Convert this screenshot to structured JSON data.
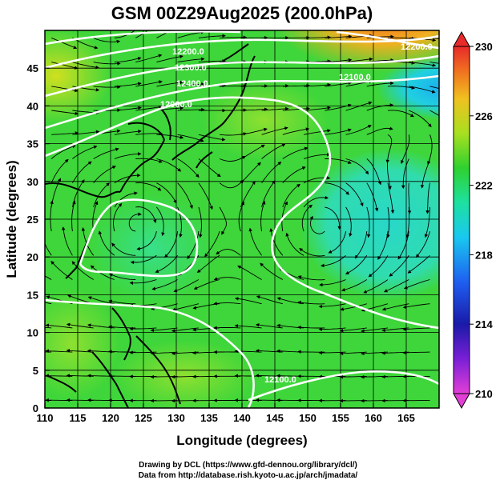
{
  "title": "GSM 00Z29Aug2025 (200.0hPa)",
  "x_axis": {
    "label": "Longitude (degrees)",
    "ticks": [
      "110",
      "115",
      "120",
      "125",
      "130",
      "135",
      "140",
      "145",
      "150",
      "155",
      "160",
      "165"
    ]
  },
  "y_axis": {
    "label": "Latitude (degrees)",
    "ticks": [
      "0",
      "5",
      "10",
      "15",
      "20",
      "25",
      "30",
      "35",
      "40",
      "45"
    ]
  },
  "colorbar": {
    "ticks": [
      "230",
      "226",
      "222",
      "218",
      "214",
      "210"
    ]
  },
  "contour_labels": [
    "12100.0",
    "12200.0",
    "12300.0",
    "12400.0",
    "12000.0",
    "12100.0",
    "12200.0"
  ],
  "credits": {
    "line1": "Drawing by DCL (https://www.gfd-dennou.org/library/dcl/)",
    "line2": "Data from http://database.rish.kyoto-u.ac.jp/arch/jmadata/"
  },
  "chart_data": {
    "type": "heatmap",
    "title": "GSM 00Z29Aug2025 (200.0hPa)",
    "xlabel": "Longitude (degrees)",
    "ylabel": "Latitude (degrees)",
    "xlim": [
      110,
      170
    ],
    "ylim": [
      0,
      50
    ],
    "colorbar_range": [
      210,
      230
    ],
    "contour_labels": [
      "12000.0",
      "12100.0",
      "12200.0",
      "12300.0",
      "12400.0"
    ],
    "features": [
      "anticyclone near 124E 24N",
      "anticyclone near 152E 24N",
      "warm region north 160E 48N",
      "cool region 165E 42N"
    ]
  }
}
